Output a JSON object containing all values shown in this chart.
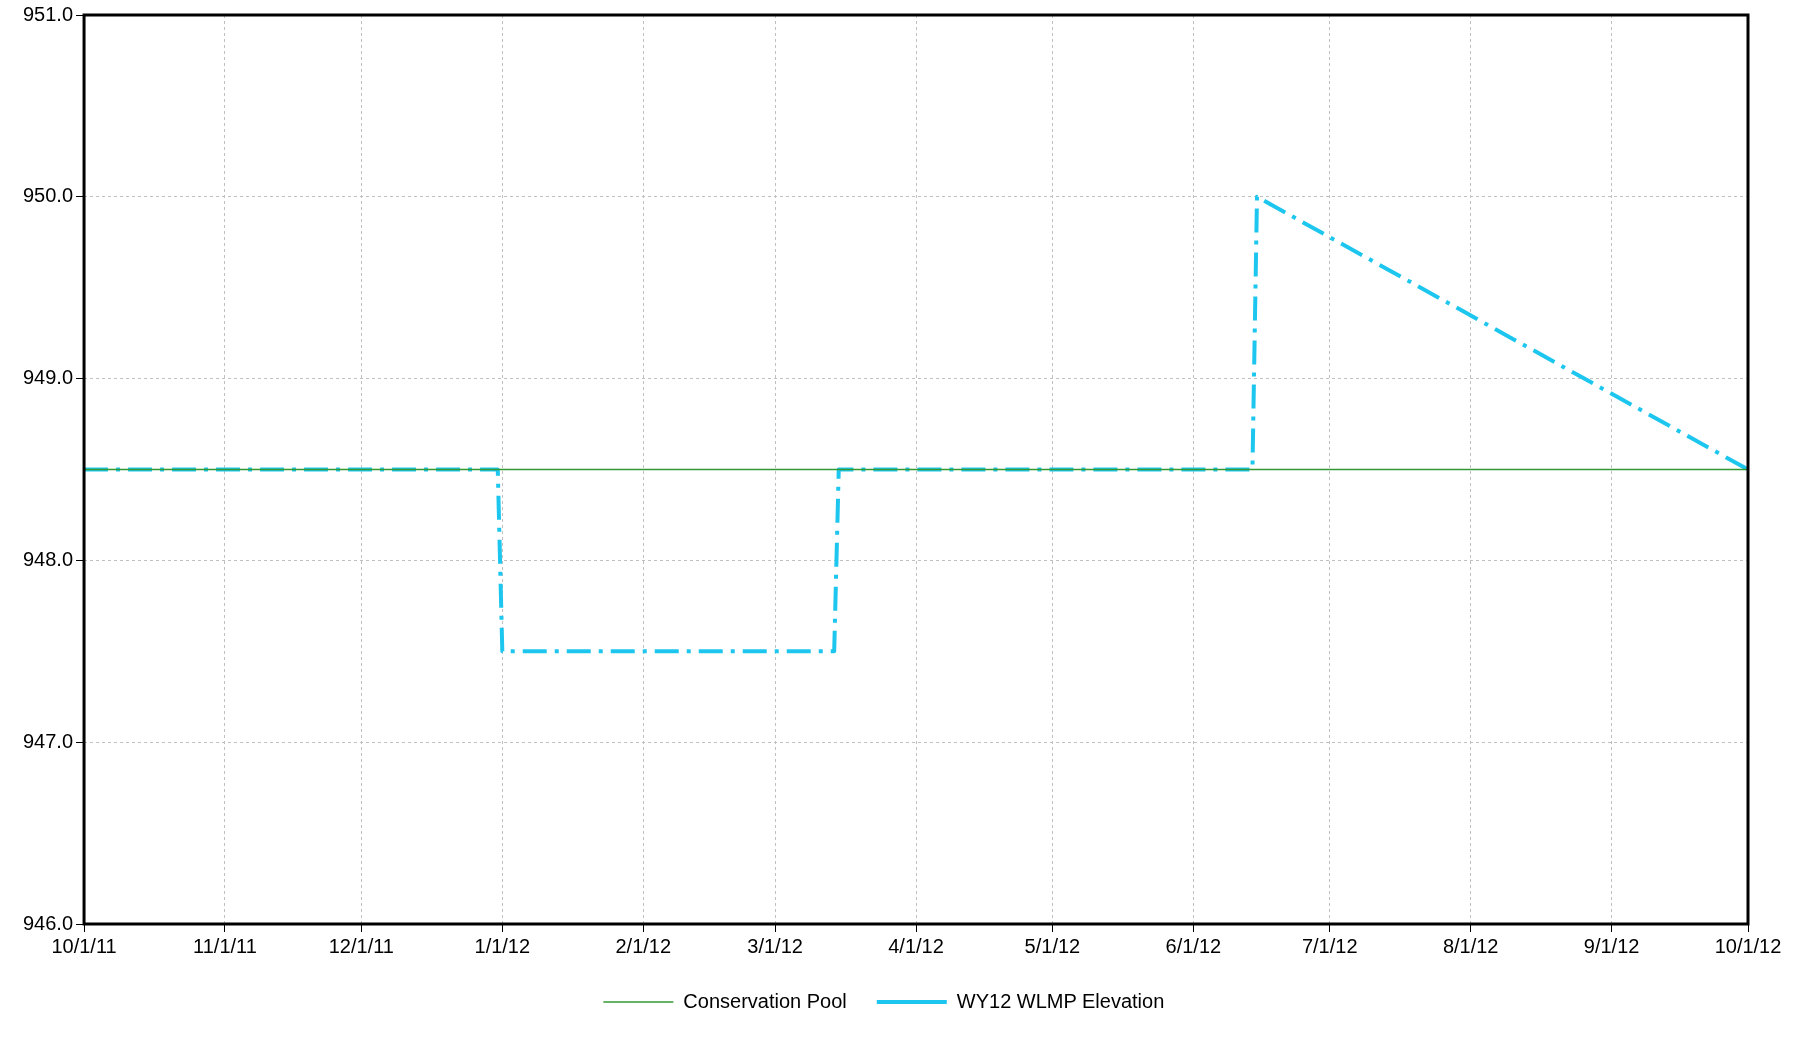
{
  "chart_data": {
    "type": "line",
    "series": [
      {
        "name": "Conservation Pool",
        "color": "#339933",
        "line_style": "solid",
        "x": [
          "2011-10-01",
          "2012-10-01"
        ],
        "values": [
          948.5,
          948.5
        ]
      },
      {
        "name": "WY12 WLMP Elevation",
        "color": "#1cc6ee",
        "line_style": "dashed",
        "x": [
          "2011-10-01",
          "2011-12-31",
          "2012-01-01",
          "2012-03-14",
          "2012-03-15",
          "2012-06-14",
          "2012-06-15",
          "2012-10-01"
        ],
        "values": [
          948.5,
          948.5,
          947.5,
          947.5,
          948.5,
          948.5,
          950,
          948.5
        ]
      }
    ],
    "xlim": [
      "2011-10-01",
      "2012-10-01"
    ],
    "xticks": [
      {
        "value": "2011-10-01",
        "label": "10/1/11"
      },
      {
        "value": "2011-11-01",
        "label": "11/1/11"
      },
      {
        "value": "2011-12-01",
        "label": "12/1/11"
      },
      {
        "value": "2012-01-01",
        "label": "1/1/12"
      },
      {
        "value": "2012-02-01",
        "label": "2/1/12"
      },
      {
        "value": "2012-03-01",
        "label": "3/1/12"
      },
      {
        "value": "2012-04-01",
        "label": "4/1/12"
      },
      {
        "value": "2012-05-01",
        "label": "5/1/12"
      },
      {
        "value": "2012-06-01",
        "label": "6/1/12"
      },
      {
        "value": "2012-07-01",
        "label": "7/1/12"
      },
      {
        "value": "2012-08-01",
        "label": "8/1/12"
      },
      {
        "value": "2012-09-01",
        "label": "9/1/12"
      },
      {
        "value": "2012-10-01",
        "label": "10/1/12"
      }
    ],
    "ylim": [
      946,
      951
    ],
    "yticks": [
      {
        "value": 946,
        "label": "946.0"
      },
      {
        "value": 947,
        "label": "947.0"
      },
      {
        "value": 948,
        "label": "948.0"
      },
      {
        "value": 949,
        "label": "949.0"
      },
      {
        "value": 950,
        "label": "950.0"
      },
      {
        "value": 951,
        "label": "951.0"
      }
    ],
    "grid": true,
    "legend": "bottom",
    "marker": "none"
  }
}
